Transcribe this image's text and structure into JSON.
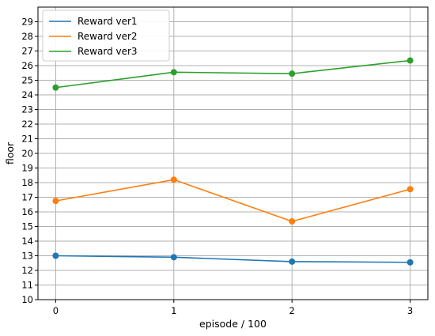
{
  "chart_data": {
    "type": "line",
    "xlabel": "episode / 100",
    "ylabel": "floor",
    "x": [
      0,
      1,
      2,
      3
    ],
    "xticks": [
      "0",
      "1",
      "2",
      "3"
    ],
    "xlim": [
      -0.15,
      3.15
    ],
    "ylim": [
      10,
      30
    ],
    "yticks": [
      10,
      11,
      12,
      13,
      14,
      15,
      16,
      17,
      18,
      19,
      20,
      21,
      22,
      23,
      24,
      25,
      26,
      27,
      28,
      29
    ],
    "grid": true,
    "legend": "top-left",
    "series": [
      {
        "name": "Reward ver1",
        "color": "#1f77b4",
        "values": [
          13.0,
          12.9,
          12.6,
          12.55
        ]
      },
      {
        "name": "Reward ver2",
        "color": "#ff7f0e",
        "values": [
          16.75,
          18.2,
          15.35,
          17.55
        ]
      },
      {
        "name": "Reward ver3",
        "color": "#2ca02c",
        "values": [
          24.5,
          25.55,
          25.45,
          26.35
        ]
      }
    ]
  }
}
